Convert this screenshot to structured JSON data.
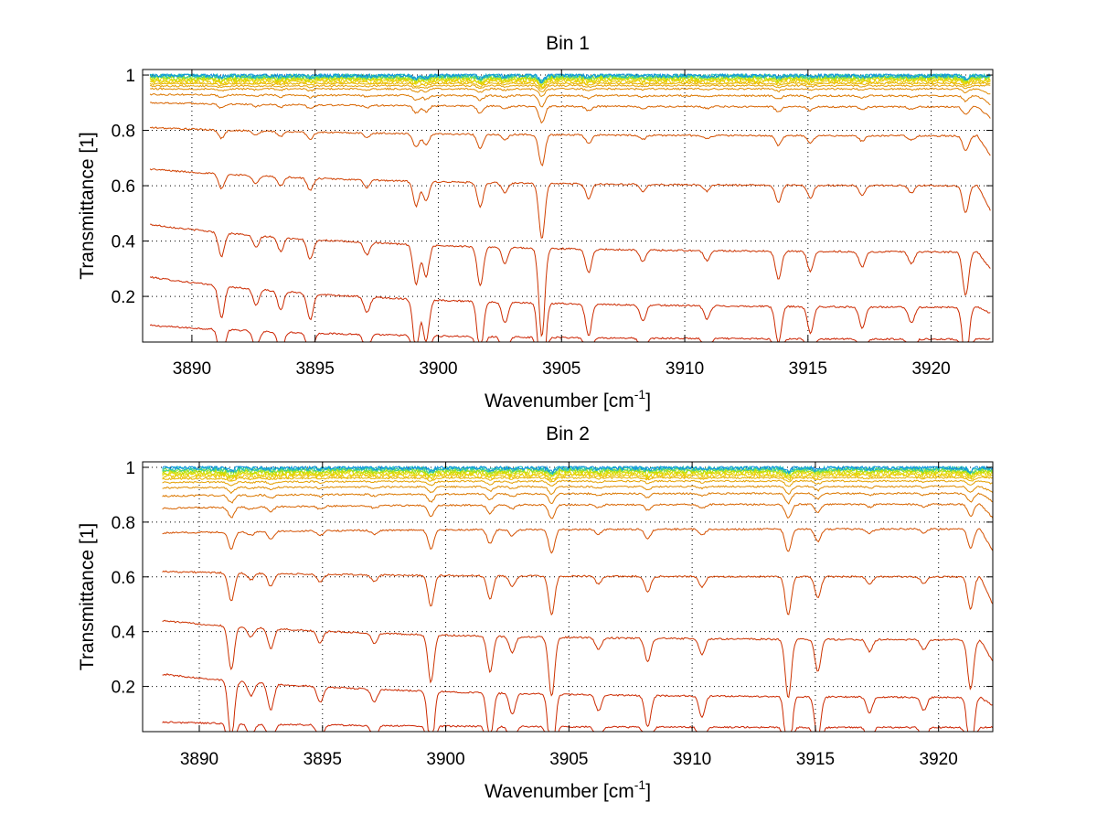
{
  "figure": {
    "background": "#ffffff",
    "line_colors": [
      "#cc2200",
      "#cc2a00",
      "#cc3300",
      "#d04000",
      "#d45000",
      "#d86400",
      "#dc7800",
      "#e08c00",
      "#e4a000",
      "#e8b400",
      "#ecc400",
      "#e8d400",
      "#d8dc00",
      "#b8e000",
      "#88e040",
      "#40d090",
      "#20c0c0",
      "#1090e0"
    ]
  },
  "chart_data": [
    {
      "type": "line",
      "title": "Bin 1",
      "xlabel": "Wavenumber [cm",
      "xlabel_sup": "-1",
      "xlabel_close": "]",
      "ylabel": "Transmittance [1]",
      "xlim": [
        3888,
        3922.5
      ],
      "ylim": [
        0.035,
        1.02
      ],
      "x_data_range": [
        3888.3,
        3922.4
      ],
      "xticks": [
        3890,
        3895,
        3900,
        3905,
        3910,
        3915,
        3920
      ],
      "xtick_labels": [
        "3890",
        "3895",
        "3900",
        "3905",
        "3910",
        "3915",
        "3920"
      ],
      "yticks": [
        0.2,
        0.4,
        0.6,
        0.8,
        1
      ],
      "ytick_labels": [
        "0.2",
        "0.4",
        "0.6",
        "0.8",
        "1"
      ],
      "grid": true,
      "absorption_lines": [
        {
          "x": 3891.2,
          "depth": 0.12
        },
        {
          "x": 3892.6,
          "depth": 0.06
        },
        {
          "x": 3893.6,
          "depth": 0.07
        },
        {
          "x": 3894.8,
          "depth": 0.1
        },
        {
          "x": 3897.1,
          "depth": 0.06
        },
        {
          "x": 3899.1,
          "depth": 0.2
        },
        {
          "x": 3899.5,
          "depth": 0.16
        },
        {
          "x": 3901.7,
          "depth": 0.2
        },
        {
          "x": 3902.7,
          "depth": 0.08
        },
        {
          "x": 3904.2,
          "depth": 0.45
        },
        {
          "x": 3906.1,
          "depth": 0.12
        },
        {
          "x": 3908.3,
          "depth": 0.06
        },
        {
          "x": 3910.9,
          "depth": 0.05
        },
        {
          "x": 3913.8,
          "depth": 0.14
        },
        {
          "x": 3915.1,
          "depth": 0.1
        },
        {
          "x": 3917.2,
          "depth": 0.08
        },
        {
          "x": 3919.2,
          "depth": 0.06
        },
        {
          "x": 3921.4,
          "depth": 0.22
        }
      ],
      "series": [
        {
          "start": 0.095,
          "end": 0.045,
          "end_drop": 0.0
        },
        {
          "start": 0.27,
          "end": 0.16,
          "end_drop": 0.02
        },
        {
          "start": 0.46,
          "end": 0.36,
          "end_drop": 0.06
        },
        {
          "start": 0.66,
          "end": 0.6,
          "end_drop": 0.09
        },
        {
          "start": 0.81,
          "end": 0.78,
          "end_drop": 0.07
        },
        {
          "start": 0.9,
          "end": 0.885,
          "end_drop": 0.04
        },
        {
          "start": 0.93,
          "end": 0.925,
          "end_drop": 0.03
        },
        {
          "start": 0.95,
          "end": 0.95,
          "end_drop": 0.02
        },
        {
          "start": 0.96,
          "end": 0.962,
          "end_drop": 0.0
        },
        {
          "start": 0.968,
          "end": 0.97,
          "end_drop": 0.0
        },
        {
          "start": 0.974,
          "end": 0.977,
          "end_drop": 0.0
        },
        {
          "start": 0.98,
          "end": 0.983,
          "end_drop": 0.0
        },
        {
          "start": 0.985,
          "end": 0.987,
          "end_drop": 0.0
        },
        {
          "start": 0.989,
          "end": 0.991,
          "end_drop": 0.0
        },
        {
          "start": 0.993,
          "end": 0.994,
          "end_drop": 0.0
        },
        {
          "start": 0.996,
          "end": 0.996,
          "end_drop": 0.0
        },
        {
          "start": 0.998,
          "end": 0.998,
          "end_drop": 0.0
        },
        {
          "start": 1.0,
          "end": 0.999,
          "end_drop": 0.0
        }
      ]
    },
    {
      "type": "line",
      "title": "Bin 2",
      "xlabel": "Wavenumber [cm",
      "xlabel_sup": "-1",
      "xlabel_close": "]",
      "ylabel": "Transmittance [1]",
      "xlim": [
        3887.7,
        3922.2
      ],
      "ylim": [
        0.035,
        1.02
      ],
      "x_data_range": [
        3888.5,
        3922.2
      ],
      "xticks": [
        3890,
        3895,
        3900,
        3905,
        3910,
        3915,
        3920
      ],
      "xtick_labels": [
        "3890",
        "3895",
        "3900",
        "3905",
        "3910",
        "3915",
        "3920"
      ],
      "yticks": [
        0.2,
        0.4,
        0.6,
        0.8,
        1
      ],
      "ytick_labels": [
        "0.2",
        "0.4",
        "0.6",
        "0.8",
        "1"
      ],
      "grid": true,
      "absorption_lines": [
        {
          "x": 3891.3,
          "depth": 0.22
        },
        {
          "x": 3892.1,
          "depth": 0.05
        },
        {
          "x": 3892.9,
          "depth": 0.1
        },
        {
          "x": 3894.9,
          "depth": 0.06
        },
        {
          "x": 3897.1,
          "depth": 0.05
        },
        {
          "x": 3899.4,
          "depth": 0.24
        },
        {
          "x": 3901.8,
          "depth": 0.18
        },
        {
          "x": 3902.7,
          "depth": 0.08
        },
        {
          "x": 3904.3,
          "depth": 0.3
        },
        {
          "x": 3906.2,
          "depth": 0.06
        },
        {
          "x": 3908.2,
          "depth": 0.12
        },
        {
          "x": 3910.4,
          "depth": 0.08
        },
        {
          "x": 3913.9,
          "depth": 0.3
        },
        {
          "x": 3915.1,
          "depth": 0.16
        },
        {
          "x": 3917.2,
          "depth": 0.06
        },
        {
          "x": 3919.4,
          "depth": 0.05
        },
        {
          "x": 3921.3,
          "depth": 0.25
        }
      ],
      "series": [
        {
          "start": 0.07,
          "end": 0.05,
          "end_drop": 0.0
        },
        {
          "start": 0.245,
          "end": 0.16,
          "end_drop": 0.03
        },
        {
          "start": 0.44,
          "end": 0.37,
          "end_drop": 0.08
        },
        {
          "start": 0.62,
          "end": 0.6,
          "end_drop": 0.1
        },
        {
          "start": 0.76,
          "end": 0.775,
          "end_drop": 0.08
        },
        {
          "start": 0.85,
          "end": 0.865,
          "end_drop": 0.05
        },
        {
          "start": 0.895,
          "end": 0.905,
          "end_drop": 0.03
        },
        {
          "start": 0.925,
          "end": 0.93,
          "end_drop": 0.02
        },
        {
          "start": 0.945,
          "end": 0.95,
          "end_drop": 0.01
        },
        {
          "start": 0.958,
          "end": 0.962,
          "end_drop": 0.0
        },
        {
          "start": 0.966,
          "end": 0.97,
          "end_drop": 0.0
        },
        {
          "start": 0.973,
          "end": 0.977,
          "end_drop": 0.0
        },
        {
          "start": 0.979,
          "end": 0.983,
          "end_drop": 0.0
        },
        {
          "start": 0.984,
          "end": 0.987,
          "end_drop": 0.0
        },
        {
          "start": 0.989,
          "end": 0.991,
          "end_drop": 0.0
        },
        {
          "start": 0.993,
          "end": 0.994,
          "end_drop": 0.0
        },
        {
          "start": 0.996,
          "end": 0.997,
          "end_drop": 0.0
        },
        {
          "start": 0.999,
          "end": 0.999,
          "end_drop": 0.0
        }
      ]
    }
  ]
}
